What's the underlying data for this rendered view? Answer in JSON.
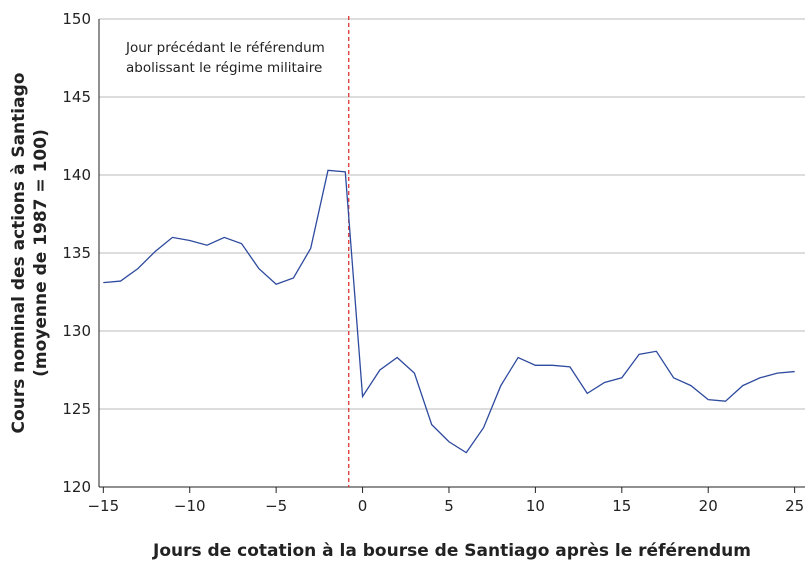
{
  "chart_data": {
    "type": "line",
    "x_label": "Jours de cotation à la bourse de Santiago après le référendum",
    "y_label": [
      "Cours nominal des actions à Santiago",
      "(moyenne de 1987 = 100)"
    ],
    "annotation": [
      "Jour précédant le référendum",
      "abolissant le régime militaire"
    ],
    "event_x": -0.8,
    "x": [
      -15,
      -14,
      -13,
      -12,
      -11,
      -10,
      -9,
      -8,
      -7,
      -6,
      -5,
      -4,
      -3,
      -2,
      -1,
      0,
      1,
      2,
      3,
      4,
      5,
      6,
      7,
      8,
      9,
      10,
      11,
      12,
      13,
      14,
      15,
      16,
      17,
      18,
      19,
      20,
      21,
      22,
      23,
      24,
      25
    ],
    "series": [
      {
        "color": "#2e4a9e",
        "values": [
          133.1,
          133.2,
          134.0,
          135.1,
          136.0,
          135.8,
          135.5,
          136.0,
          135.6,
          134.0,
          133.0,
          133.4,
          135.3,
          140.3,
          140.2,
          125.8,
          127.5,
          128.3,
          127.3,
          124.0,
          122.9,
          122.2,
          123.8,
          126.5,
          128.3,
          127.8,
          127.8,
          127.7,
          126.0,
          126.7,
          127.0,
          128.5,
          128.7,
          127.0,
          126.5,
          125.6,
          125.5,
          126.5,
          127.0,
          127.3,
          127.4
        ]
      }
    ],
    "xlim": [
      -15.25,
      25.6
    ],
    "ylim": [
      120,
      150
    ],
    "xticks": [
      {
        "value": -15,
        "label": "−15"
      },
      {
        "value": -10,
        "label": "−10"
      },
      {
        "value": -5,
        "label": "−5"
      },
      0,
      5,
      10,
      15,
      20,
      25
    ],
    "yticks": [
      120,
      125,
      130,
      135,
      140,
      145,
      150
    ],
    "grid": true
  }
}
